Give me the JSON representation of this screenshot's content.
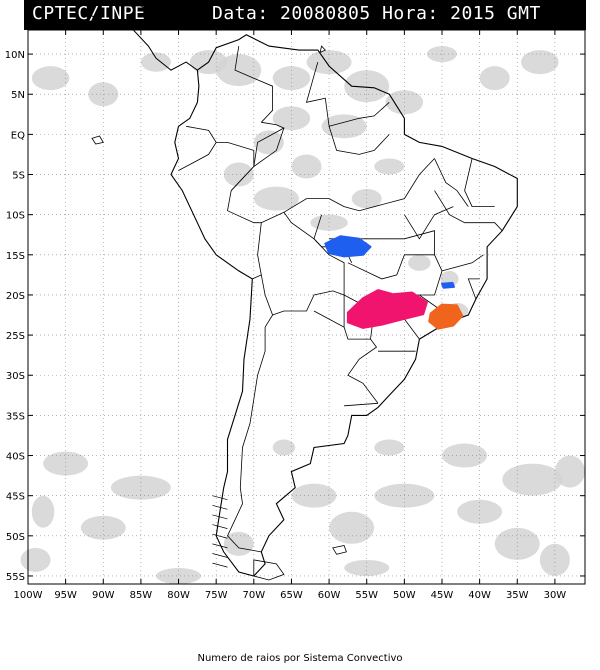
{
  "header": {
    "agency": "CPTEC/INPE",
    "date_label": "Data:",
    "date_value": "20080805",
    "time_label": "Hora:",
    "time_value": "2015 GMT"
  },
  "axes": {
    "lat_labels": [
      "10N",
      "5N",
      "EQ",
      "5S",
      "10S",
      "15S",
      "20S",
      "25S",
      "30S",
      "35S",
      "40S",
      "45S",
      "50S",
      "55S"
    ],
    "lat_values": [
      10,
      5,
      0,
      -5,
      -10,
      -15,
      -20,
      -25,
      -30,
      -35,
      -40,
      -45,
      -50,
      -55
    ],
    "lon_labels": [
      "100W",
      "95W",
      "90W",
      "85W",
      "80W",
      "75W",
      "70W",
      "65W",
      "60W",
      "55W",
      "50W",
      "45W",
      "40W",
      "35W",
      "30W"
    ],
    "lon_values": [
      -100,
      -95,
      -90,
      -85,
      -80,
      -75,
      -70,
      -65,
      -60,
      -55,
      -50,
      -45,
      -40,
      -35,
      -30
    ],
    "lon_range": [
      -100,
      -26
    ],
    "lat_range": [
      -56,
      13
    ],
    "grid": "dotted"
  },
  "convective_systems": [
    {
      "id": "mato-grosso-cell",
      "color": "#1f5ff0",
      "lon": -57.5,
      "lat": -14.2
    },
    {
      "id": "minas-small-cell",
      "color": "#1f5ff0",
      "lon": -44.2,
      "lat": -18.8
    },
    {
      "id": "parana-sp-cluster",
      "color": "#f0146e",
      "lon": -51.5,
      "lat": -21.9
    },
    {
      "id": "rio-sp-coast-cluster",
      "color": "#f0641e",
      "lon": -44.5,
      "lat": -22.8
    }
  ],
  "colors": {
    "cloud": "#d4d4d4",
    "border": "#000000",
    "grid": "#888888"
  },
  "caption": "Numero de raios por Sistema Convectivo"
}
